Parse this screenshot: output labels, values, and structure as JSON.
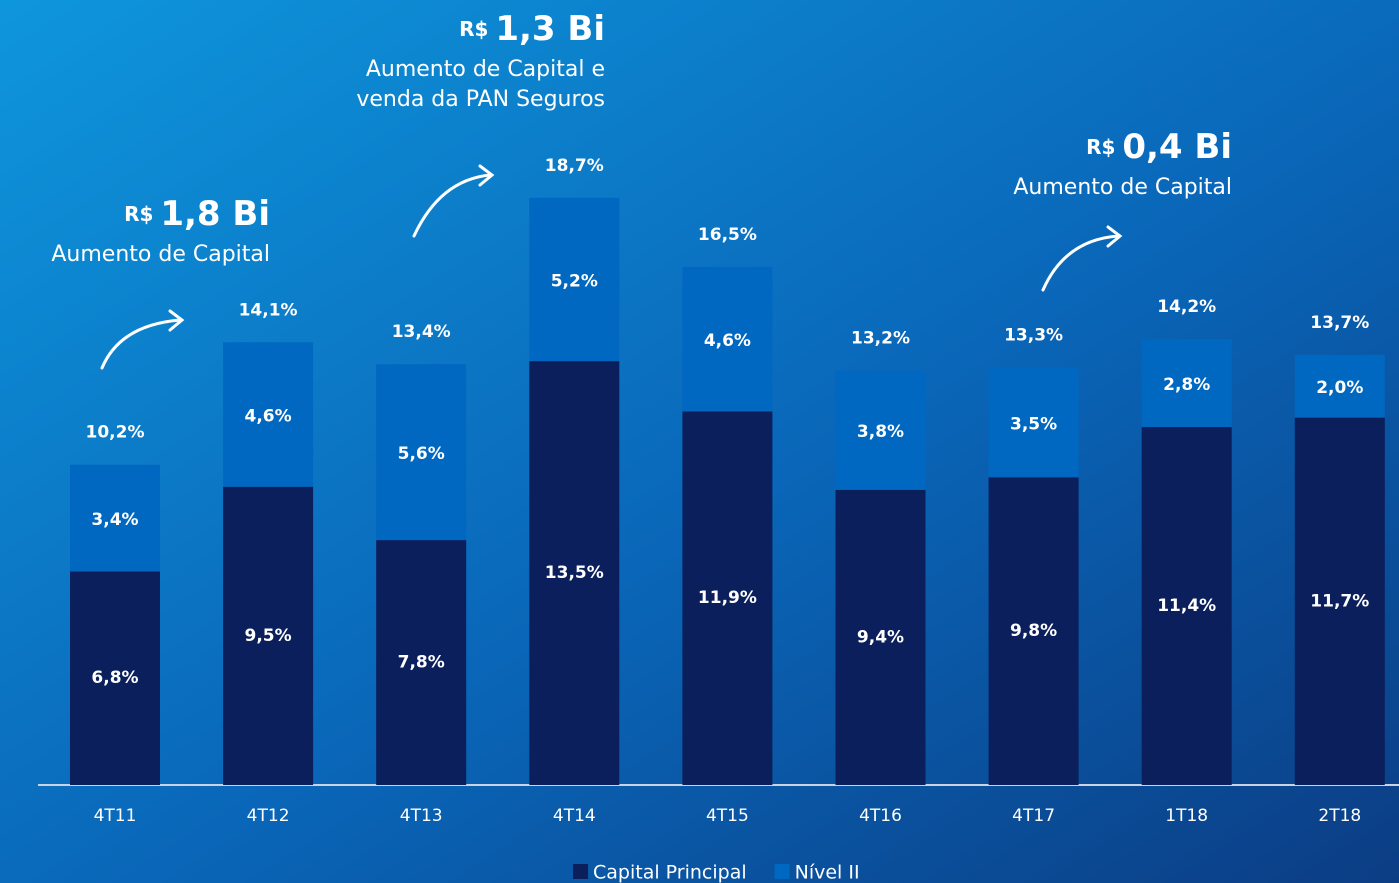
{
  "chart_data": {
    "type": "stacked_bar",
    "categories": [
      "4T11",
      "4T12",
      "4T13",
      "4T14",
      "4T15",
      "4T16",
      "4T17",
      "1T18",
      "2T18"
    ],
    "series": [
      {
        "name": "Capital Principal",
        "color": "#0a1f5c",
        "values": [
          6.8,
          9.5,
          7.8,
          13.5,
          11.9,
          9.4,
          9.8,
          11.4,
          11.7
        ],
        "value_labels": [
          "6,8%",
          "9,5%",
          "7,8%",
          "13,5%",
          "11,9%",
          "9,4%",
          "9,8%",
          "11,4%",
          "11,7%"
        ]
      },
      {
        "name": "Nível II",
        "color": "#0068c0",
        "values": [
          3.4,
          4.6,
          5.6,
          5.2,
          4.6,
          3.8,
          3.5,
          2.8,
          2.0
        ],
        "value_labels": [
          "3,4%",
          "4,6%",
          "5,6%",
          "5,2%",
          "4,6%",
          "3,8%",
          "3,5%",
          "2,8%",
          "2,0%"
        ]
      }
    ],
    "total_labels": [
      "10,2%",
      "14,1%",
      "13,4%",
      "18,7%",
      "16,5%",
      "13,2%",
      "13,3%",
      "14,2%",
      "13,7%"
    ],
    "ylim": [
      0,
      20
    ],
    "annotations": [
      {
        "prefix": "R$",
        "value": "1,8 Bi",
        "lines": [
          "Aumento de Capital"
        ]
      },
      {
        "prefix": "R$",
        "value": "1,3 Bi",
        "lines": [
          "Aumento de Capital e",
          "venda da PAN Seguros"
        ]
      },
      {
        "prefix": "R$",
        "value": "0,4 Bi",
        "lines": [
          "Aumento de Capital"
        ]
      }
    ]
  }
}
